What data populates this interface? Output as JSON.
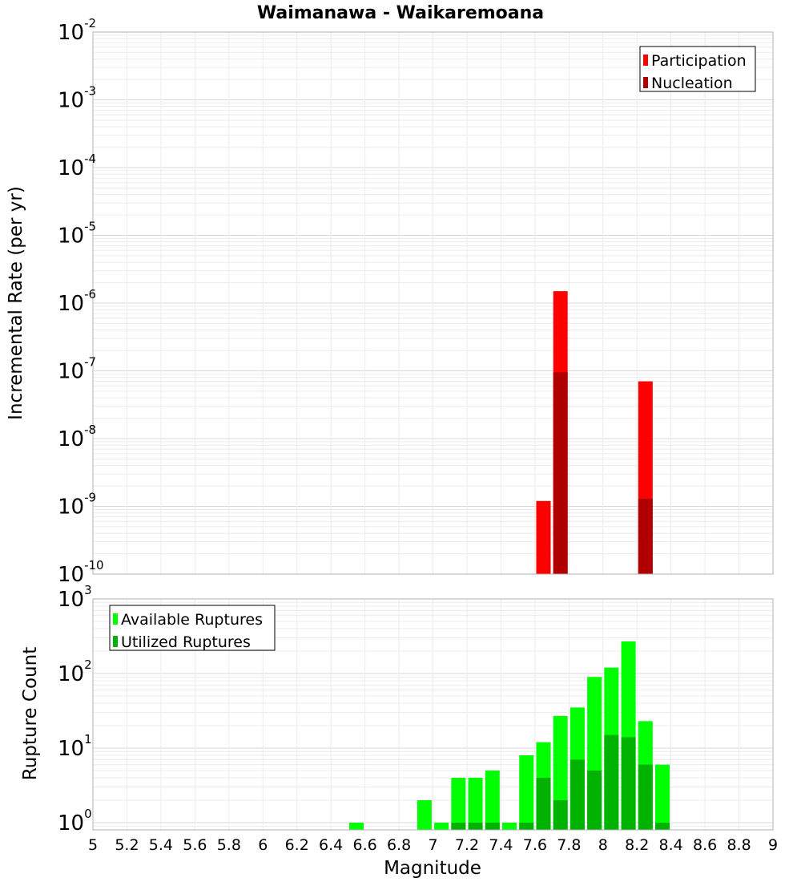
{
  "title": "Waimanawa - Waikaremoana",
  "chart_data": [
    {
      "type": "bar",
      "ylabel": "Incremental Rate (per yr)",
      "yscale": "log",
      "ylim": [
        1e-10,
        0.01
      ],
      "yticks": [
        {
          "base": "10",
          "exp": "-2",
          "value": 0.01
        },
        {
          "base": "10",
          "exp": "-3",
          "value": 0.001
        },
        {
          "base": "10",
          "exp": "-4",
          "value": 0.0001
        },
        {
          "base": "10",
          "exp": "-5",
          "value": 1e-05
        },
        {
          "base": "10",
          "exp": "-6",
          "value": 1e-06
        },
        {
          "base": "10",
          "exp": "-7",
          "value": 1e-07
        },
        {
          "base": "10",
          "exp": "-8",
          "value": 1e-08
        },
        {
          "base": "10",
          "exp": "-9",
          "value": 1e-09
        },
        {
          "base": "10",
          "exp": "-10",
          "value": 1e-10
        }
      ],
      "grid": true,
      "legend_position": "top-right",
      "series": [
        {
          "name": "Participation",
          "color": "#ff0000",
          "points": [
            {
              "x": 7.65,
              "y": 1.2e-09
            },
            {
              "x": 7.75,
              "y": 1.5e-06
            },
            {
              "x": 8.25,
              "y": 7e-08
            }
          ]
        },
        {
          "name": "Nucleation",
          "color": "#b00000",
          "points": [
            {
              "x": 7.75,
              "y": 9.5e-08
            },
            {
              "x": 8.25,
              "y": 1.3e-09
            }
          ]
        }
      ]
    },
    {
      "type": "bar",
      "xlabel": "Magnitude",
      "ylabel": "Rupture Count",
      "yscale": "log",
      "ylim": [
        0.8,
        1000
      ],
      "xlim": [
        5,
        9
      ],
      "xticks": [
        "5",
        "5.2",
        "5.4",
        "5.6",
        "5.8",
        "6",
        "6.2",
        "6.4",
        "6.6",
        "6.8",
        "7",
        "7.2",
        "7.4",
        "7.6",
        "7.8",
        "8",
        "8.2",
        "8.4",
        "8.6",
        "8.8",
        "9"
      ],
      "yticks": [
        {
          "base": "10",
          "exp": "3",
          "value": 1000
        },
        {
          "base": "10",
          "exp": "2",
          "value": 100
        },
        {
          "base": "10",
          "exp": "1",
          "value": 10
        },
        {
          "base": "10",
          "exp": "0",
          "value": 1
        }
      ],
      "grid": true,
      "legend_position": "top-left",
      "series": [
        {
          "name": "Available Ruptures",
          "color": "#00ff00",
          "points": [
            {
              "x": 6.55,
              "y": 1
            },
            {
              "x": 6.95,
              "y": 2
            },
            {
              "x": 7.05,
              "y": 1
            },
            {
              "x": 7.15,
              "y": 4
            },
            {
              "x": 7.25,
              "y": 4
            },
            {
              "x": 7.35,
              "y": 5
            },
            {
              "x": 7.45,
              "y": 1
            },
            {
              "x": 7.55,
              "y": 8
            },
            {
              "x": 7.65,
              "y": 12
            },
            {
              "x": 7.75,
              "y": 27
            },
            {
              "x": 7.85,
              "y": 35
            },
            {
              "x": 7.95,
              "y": 90
            },
            {
              "x": 8.05,
              "y": 120
            },
            {
              "x": 8.15,
              "y": 270
            },
            {
              "x": 8.25,
              "y": 23
            },
            {
              "x": 8.35,
              "y": 6
            }
          ]
        },
        {
          "name": "Utilized Ruptures",
          "color": "#00b200",
          "points": [
            {
              "x": 7.15,
              "y": 1
            },
            {
              "x": 7.25,
              "y": 1
            },
            {
              "x": 7.35,
              "y": 1
            },
            {
              "x": 7.55,
              "y": 1
            },
            {
              "x": 7.65,
              "y": 4
            },
            {
              "x": 7.75,
              "y": 2
            },
            {
              "x": 7.85,
              "y": 7
            },
            {
              "x": 7.95,
              "y": 5
            },
            {
              "x": 8.05,
              "y": 15
            },
            {
              "x": 8.15,
              "y": 14
            },
            {
              "x": 8.25,
              "y": 6
            },
            {
              "x": 8.35,
              "y": 1
            }
          ]
        }
      ]
    }
  ]
}
